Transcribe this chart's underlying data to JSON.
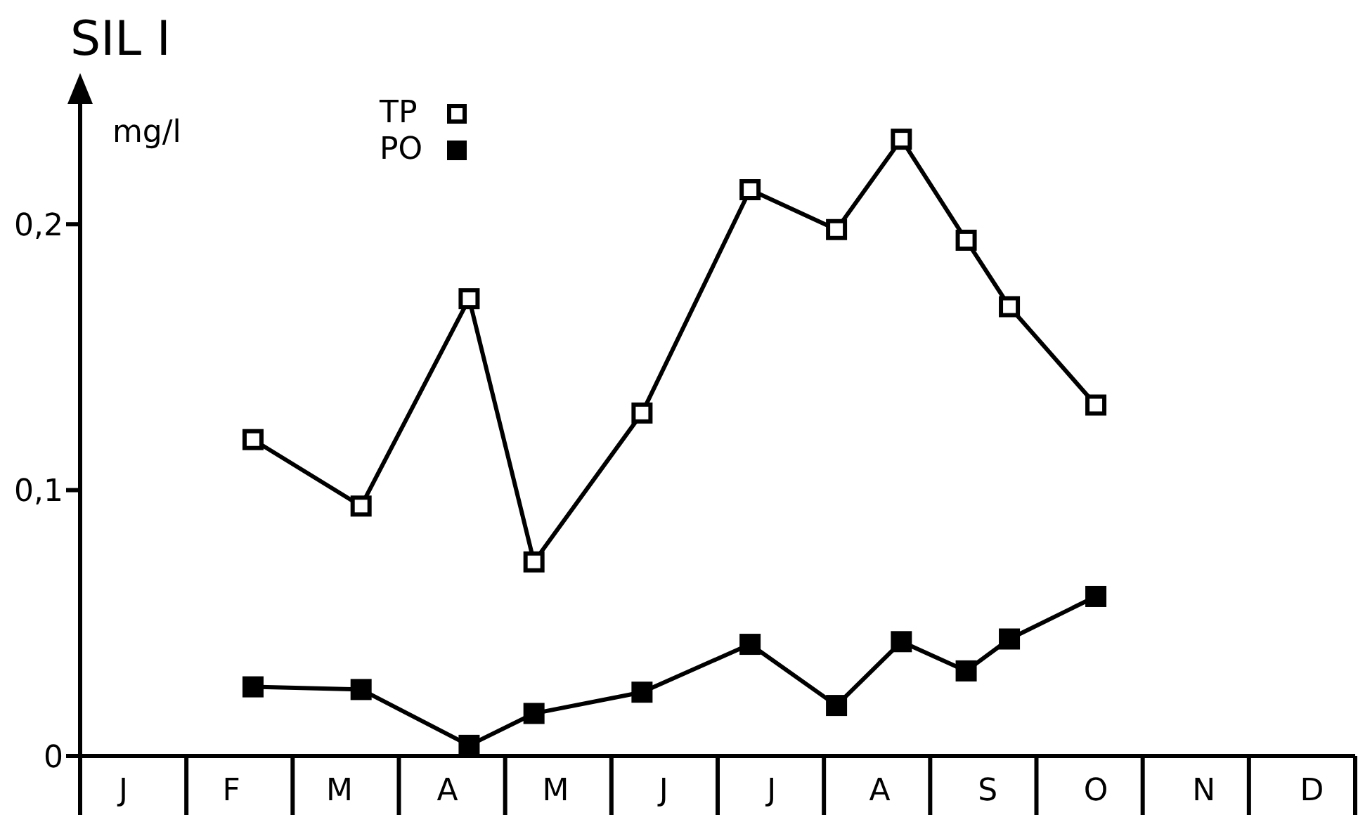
{
  "chart_data": {
    "type": "line",
    "title": "SIL I",
    "ylabel": "mg/l",
    "categories": [
      null,
      null,
      "J",
      null,
      null,
      null,
      null,
      "F",
      null,
      null,
      null,
      null,
      "M",
      null,
      null,
      null,
      null,
      "A",
      null,
      null,
      null,
      null,
      "M",
      null,
      null,
      null,
      null,
      "J",
      null,
      null,
      null,
      null,
      "J",
      null,
      null,
      null,
      null,
      "A",
      null,
      null,
      null,
      null,
      "S",
      null,
      null,
      null,
      null,
      "O",
      null,
      null,
      null,
      null,
      "N",
      null,
      null,
      null,
      null,
      "D",
      null,
      null
    ],
    "series": [
      {
        "name": "TP",
        "color": "#000000",
        "marker": "square",
        "values": [
          null,
          null,
          null,
          null,
          null,
          null,
          null,
          null,
          0.119,
          null,
          null,
          null,
          null,
          0.094,
          null,
          null,
          null,
          null,
          0.172,
          null,
          null,
          0.073,
          null,
          null,
          null,
          null,
          0.129,
          null,
          null,
          null,
          null,
          0.213,
          null,
          null,
          null,
          0.198,
          null,
          null,
          0.232,
          null,
          null,
          0.194,
          null,
          0.169,
          null,
          null,
          null,
          0.132,
          null,
          null,
          null,
          null,
          null,
          null,
          null,
          null,
          null,
          null,
          null,
          null
        ]
      },
      {
        "name": "PO",
        "color": "#000000",
        "marker": "square",
        "values": [
          null,
          null,
          null,
          null,
          null,
          null,
          null,
          null,
          0.026,
          null,
          null,
          null,
          null,
          0.025,
          null,
          null,
          null,
          null,
          0.004,
          null,
          null,
          0.016,
          null,
          null,
          null,
          null,
          0.024,
          null,
          null,
          null,
          null,
          0.042,
          null,
          null,
          null,
          0.019,
          null,
          null,
          0.043,
          null,
          null,
          0.032,
          null,
          0.044,
          null,
          null,
          null,
          0.06,
          null,
          null,
          null,
          null,
          null,
          null,
          null,
          null,
          null,
          null,
          null,
          null
        ]
      }
    ],
    "ylim": [
      0,
      0.25
    ],
    "yticks": [
      {
        "value": 0,
        "label": "0"
      },
      {
        "value": 0.1,
        "label": "0,1"
      },
      {
        "value": 0.2,
        "label": "0,2"
      }
    ],
    "legend": "top",
    "grid": false,
    "line_style": "solid"
  }
}
